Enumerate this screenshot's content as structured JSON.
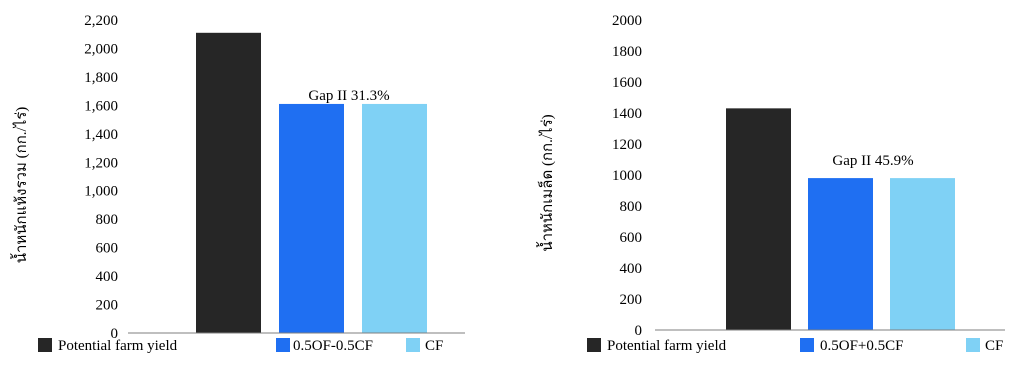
{
  "chart_data": [
    {
      "type": "bar",
      "categories": [
        "Potential farm yield",
        "0.5OF-0.5CF",
        "CF"
      ],
      "values": [
        2110,
        1610,
        1610
      ],
      "colors": [
        "#262626",
        "#1f6ff2",
        "#7fd1f5"
      ],
      "ylabel": "น้ำหนักแห้งรวม (กก./ไร่)",
      "ylim": [
        0,
        2200
      ],
      "yticks": [
        "0",
        "200",
        "400",
        "600",
        "800",
        "1,000",
        "1,200",
        "1,400",
        "1,600",
        "1,800",
        "2,000",
        "2,200"
      ],
      "annotation": "Gap II 31.3%",
      "legend": [
        "Potential farm yield",
        "0.5OF-0.5CF",
        "CF"
      ],
      "legend_position": "bottom",
      "grid": false
    },
    {
      "type": "bar",
      "categories": [
        "Potential farm yield",
        "0.5OF+0.5CF",
        "CF"
      ],
      "values": [
        1430,
        980,
        980
      ],
      "colors": [
        "#262626",
        "#1f6ff2",
        "#7fd1f5"
      ],
      "ylabel": "น้ำหนักเมล็ด (กก./ไร่)",
      "ylim": [
        0,
        2000
      ],
      "yticks": [
        "0",
        "200",
        "400",
        "600",
        "800",
        "1000",
        "1200",
        "1400",
        "1600",
        "1800",
        "2000"
      ],
      "annotation": "Gap II 45.9%",
      "legend": [
        "Potential farm yield",
        "0.5OF+0.5CF",
        "CF"
      ],
      "legend_position": "bottom",
      "grid": false
    }
  ]
}
